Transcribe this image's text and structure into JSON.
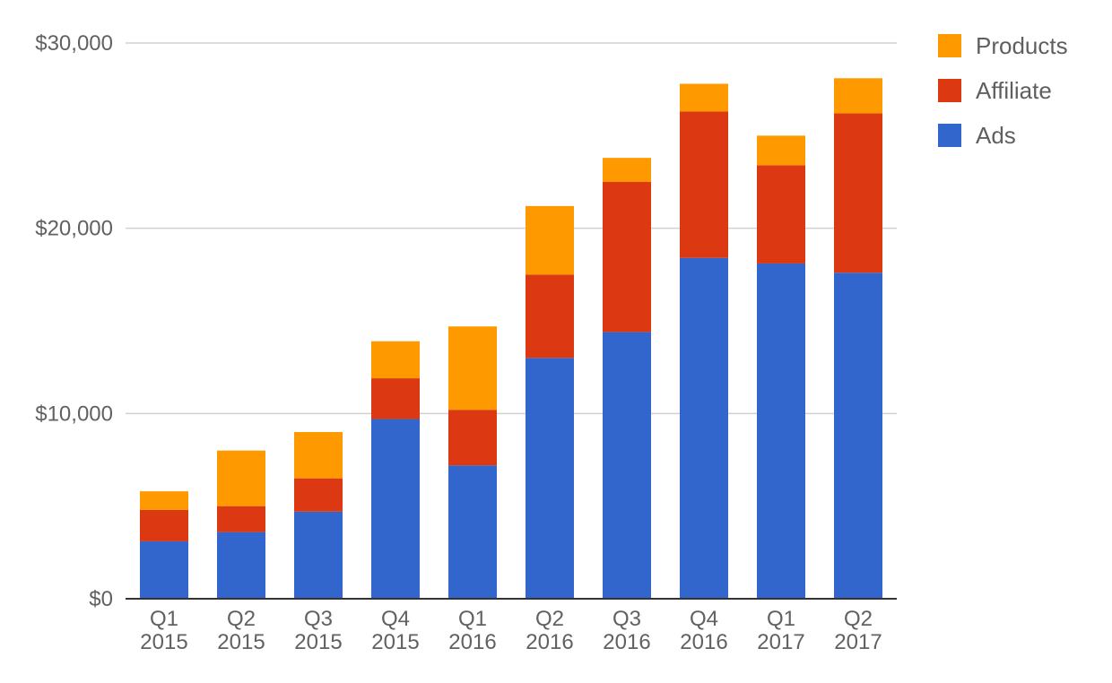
{
  "chart_data": {
    "type": "bar",
    "stacked": true,
    "title": "",
    "xlabel": "",
    "ylabel": "",
    "categories": [
      [
        "Q1",
        "2015"
      ],
      [
        "Q2",
        "2015"
      ],
      [
        "Q3",
        "2015"
      ],
      [
        "Q4",
        "2015"
      ],
      [
        "Q1",
        "2016"
      ],
      [
        "Q2",
        "2016"
      ],
      [
        "Q3",
        "2016"
      ],
      [
        "Q4",
        "2016"
      ],
      [
        "Q1",
        "2017"
      ],
      [
        "Q2",
        "2017"
      ]
    ],
    "series": [
      {
        "name": "Ads",
        "color": "#3366cc",
        "values": [
          3100,
          3600,
          4700,
          9700,
          7200,
          13000,
          14400,
          18400,
          18100,
          17600
        ]
      },
      {
        "name": "Affiliate",
        "color": "#dc3912",
        "values": [
          1700,
          1400,
          1800,
          2200,
          3000,
          4500,
          8100,
          7900,
          5300,
          8600
        ]
      },
      {
        "name": "Products",
        "color": "#ff9900",
        "values": [
          1000,
          3000,
          2500,
          2000,
          4500,
          3700,
          1300,
          1500,
          1600,
          1900
        ]
      }
    ],
    "ylim": [
      0,
      30000
    ],
    "yticks": [
      0,
      10000,
      20000,
      30000
    ],
    "ytick_labels": [
      "$0",
      "$10,000",
      "$20,000",
      "$30,000"
    ],
    "grid": true,
    "legend_position": "top-right",
    "legend_order": [
      "Products",
      "Affiliate",
      "Ads"
    ]
  }
}
